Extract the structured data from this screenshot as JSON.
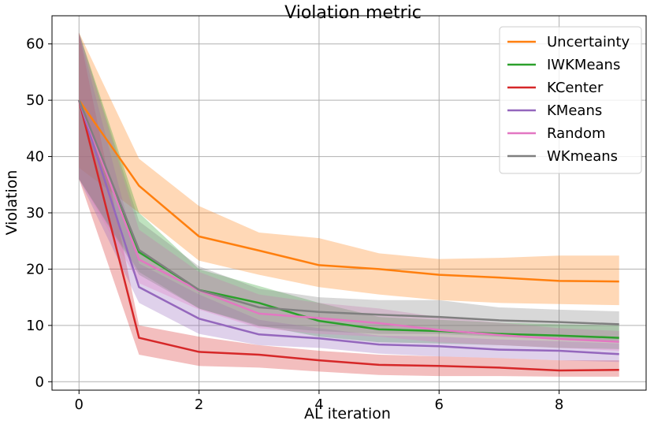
{
  "chart_data": {
    "type": "line",
    "title": "Violation metric",
    "xlabel": "AL iteration",
    "ylabel": "Violation",
    "xlim": [
      -0.45,
      9.45
    ],
    "ylim": [
      -1.5,
      65
    ],
    "xticks": [
      0,
      2,
      4,
      6,
      8
    ],
    "yticks": [
      0,
      10,
      20,
      30,
      40,
      50,
      60
    ],
    "grid": true,
    "legend_position": "top-right",
    "x": [
      0,
      1,
      2,
      3,
      4,
      5,
      6,
      7,
      8,
      9
    ],
    "series": [
      {
        "name": "Uncertainty",
        "color": "#ff7f0e",
        "values": [
          50.0,
          34.8,
          25.8,
          23.3,
          20.7,
          20.0,
          19.0,
          18.5,
          17.9,
          17.8
        ],
        "lower": [
          38.0,
          30.0,
          21.5,
          19.0,
          16.8,
          15.5,
          14.5,
          14.0,
          13.8,
          13.6
        ],
        "upper": [
          62.0,
          39.6,
          31.2,
          26.5,
          25.5,
          22.8,
          21.8,
          22.0,
          22.4,
          22.4
        ]
      },
      {
        "name": "IWKMeans",
        "color": "#2ca02c",
        "values": [
          50.0,
          23.0,
          16.3,
          14.0,
          10.8,
          9.3,
          9.0,
          8.5,
          8.2,
          7.8
        ],
        "lower": [
          36.0,
          19.5,
          13.0,
          10.0,
          8.0,
          7.0,
          6.8,
          6.5,
          6.0,
          5.8
        ],
        "upper": [
          62.0,
          30.0,
          20.0,
          17.0,
          14.0,
          11.5,
          11.0,
          10.5,
          10.2,
          10.0
        ]
      },
      {
        "name": "KCenter",
        "color": "#d62728",
        "values": [
          50.0,
          7.8,
          5.3,
          4.8,
          3.8,
          3.0,
          2.8,
          2.5,
          2.0,
          2.1
        ],
        "lower": [
          36.0,
          4.8,
          2.8,
          2.5,
          1.8,
          1.2,
          1.0,
          1.0,
          0.9,
          0.9
        ],
        "upper": [
          62.0,
          10.0,
          8.0,
          6.5,
          5.5,
          4.8,
          4.5,
          4.2,
          3.8,
          3.8
        ]
      },
      {
        "name": "KMeans",
        "color": "#9467bd",
        "values": [
          50.0,
          16.8,
          11.2,
          8.4,
          7.7,
          6.6,
          6.3,
          5.7,
          5.5,
          4.9
        ],
        "lower": [
          36.0,
          14.0,
          8.5,
          6.5,
          6.0,
          5.0,
          4.5,
          4.2,
          3.8,
          3.5
        ],
        "upper": [
          62.0,
          21.0,
          15.5,
          11.0,
          9.5,
          8.2,
          8.0,
          7.5,
          7.2,
          6.8
        ]
      },
      {
        "name": "Random",
        "color": "#e377c2",
        "values": [
          50.0,
          21.7,
          16.2,
          12.1,
          11.3,
          10.4,
          9.2,
          8.3,
          7.6,
          7.1
        ],
        "lower": [
          36.0,
          17.5,
          12.8,
          9.5,
          8.5,
          8.0,
          7.0,
          6.5,
          6.0,
          5.5
        ],
        "upper": [
          62.0,
          27.0,
          19.5,
          15.5,
          14.0,
          13.0,
          11.5,
          10.5,
          9.5,
          9.0
        ]
      },
      {
        "name": "WKmeans",
        "color": "#7f7f7f",
        "values": [
          50.0,
          23.4,
          16.3,
          13.2,
          12.4,
          11.9,
          11.5,
          10.9,
          10.6,
          10.2
        ],
        "lower": [
          36.0,
          19.0,
          13.0,
          9.8,
          9.0,
          8.5,
          8.5,
          8.0,
          7.5,
          7.3
        ],
        "upper": [
          62.0,
          28.5,
          20.5,
          16.5,
          15.0,
          14.5,
          14.5,
          13.2,
          12.8,
          12.5
        ]
      }
    ]
  }
}
